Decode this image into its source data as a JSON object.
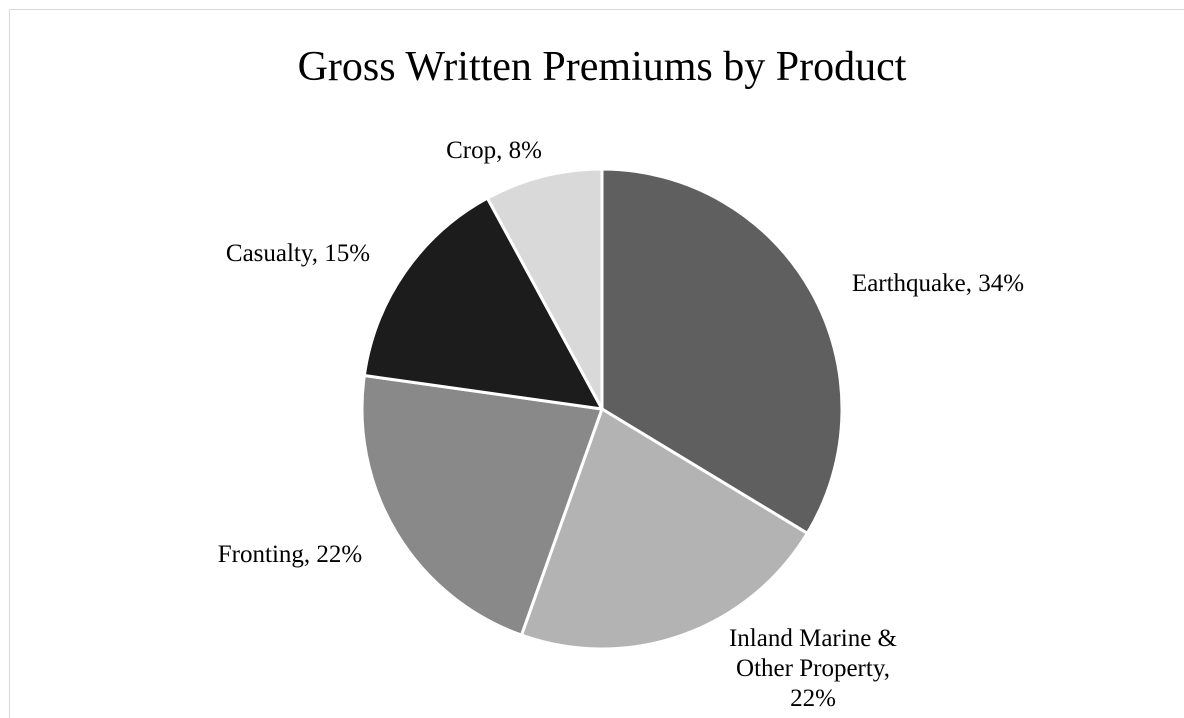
{
  "chart_data": {
    "type": "pie",
    "title": "Gross Written Premiums by Product",
    "slices": [
      {
        "label": "Earthquake",
        "value": 34,
        "color": "#5f5f5f",
        "data_label_lines": [
          "Earthquake, 34%"
        ]
      },
      {
        "label": "Inland Marine & Other Property",
        "value": 22,
        "color": "#b3b3b3",
        "data_label_lines": [
          "Inland Marine &",
          "Other Property,",
          "22%"
        ]
      },
      {
        "label": "Fronting",
        "value": 22,
        "color": "#898989",
        "data_label_lines": [
          "Fronting, 22%"
        ]
      },
      {
        "label": "Casualty",
        "value": 15,
        "color": "#1c1c1c",
        "data_label_lines": [
          "Casualty, 15%"
        ]
      },
      {
        "label": "Crop",
        "value": 8,
        "color": "#d9d9d9",
        "data_label_lines": [
          "Crop, 8%"
        ]
      }
    ],
    "legend": "none",
    "start_angle": "12 o'clock, clockwise"
  }
}
